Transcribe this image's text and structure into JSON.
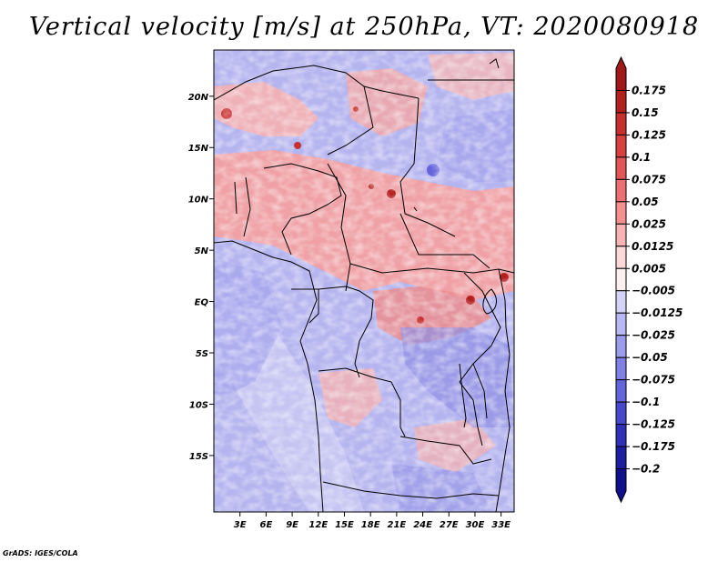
{
  "title": "Vertical velocity [m/s] at 250hPa, VT: 2020080918",
  "credit": "GrADS: IGES/COLA",
  "map": {
    "variable": "Vertical velocity",
    "units": "m/s",
    "level": "250hPa",
    "valid_time": "2020080918",
    "lon_range": [
      0,
      34.5
    ],
    "lat_range": [
      -20.5,
      24.5
    ],
    "lon_ticks": [
      {
        "v": 3,
        "label": "3E"
      },
      {
        "v": 6,
        "label": "6E"
      },
      {
        "v": 9,
        "label": "9E"
      },
      {
        "v": 12,
        "label": "12E"
      },
      {
        "v": 15,
        "label": "15E"
      },
      {
        "v": 18,
        "label": "18E"
      },
      {
        "v": 21,
        "label": "21E"
      },
      {
        "v": 24,
        "label": "24E"
      },
      {
        "v": 27,
        "label": "27E"
      },
      {
        "v": 30,
        "label": "30E"
      },
      {
        "v": 33,
        "label": "33E"
      }
    ],
    "lat_ticks": [
      {
        "v": 20,
        "label": "20N"
      },
      {
        "v": 15,
        "label": "15N"
      },
      {
        "v": 10,
        "label": "10N"
      },
      {
        "v": 5,
        "label": "5N"
      },
      {
        "v": 0,
        "label": "EQ"
      },
      {
        "v": -5,
        "label": "5S"
      },
      {
        "v": -10,
        "label": "10S"
      },
      {
        "v": -15,
        "label": "15S"
      }
    ]
  },
  "colorbar": {
    "levels": [
      "0.175",
      "0.15",
      "0.125",
      "0.1",
      "0.075",
      "0.05",
      "0.025",
      "0.0125",
      "0.005",
      "-0.005",
      "-0.0125",
      "-0.025",
      "-0.05",
      "-0.075",
      "-0.1",
      "-0.125",
      "-0.175",
      "-0.2"
    ],
    "colors": [
      "#a01818",
      "#b42020",
      "#c83030",
      "#d84040",
      "#e25656",
      "#ec7070",
      "#f49090",
      "#f8b4b4",
      "#fcd8d8",
      "#fdf0f0",
      "#d4d4f8",
      "#b8b8f2",
      "#9c9cec",
      "#8080e4",
      "#6464dc",
      "#4848cc",
      "#3030b8",
      "#1e1ea0",
      "#10108c"
    ]
  }
}
